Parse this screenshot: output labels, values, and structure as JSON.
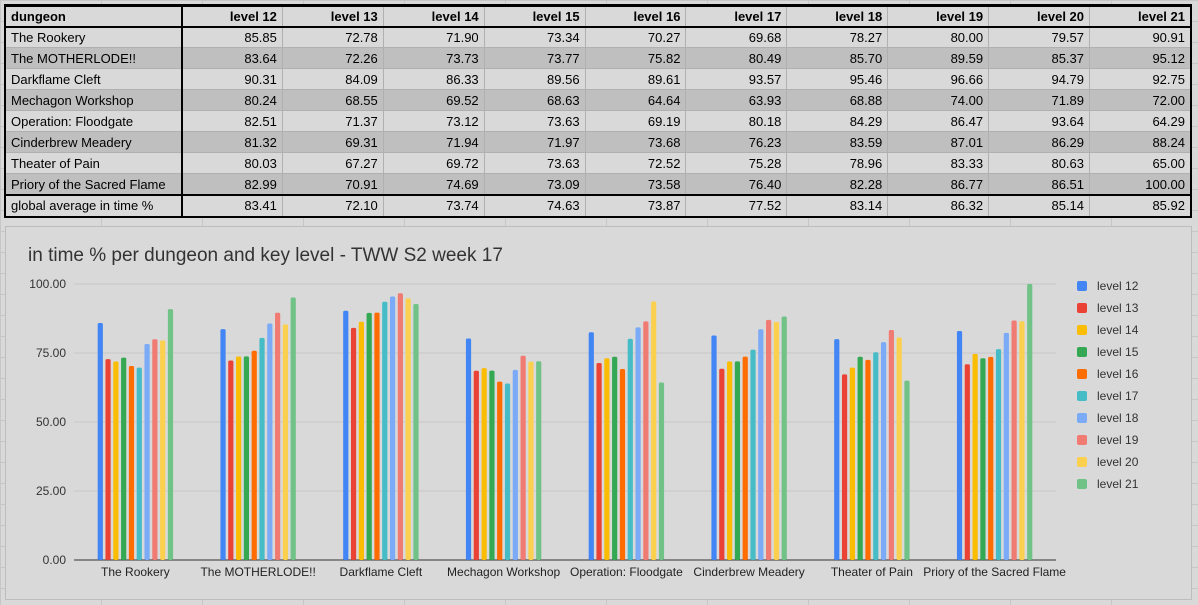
{
  "table": {
    "header": [
      "dungeon",
      "level 12",
      "level 13",
      "level 14",
      "level 15",
      "level 16",
      "level 17",
      "level 18",
      "level 19",
      "level 20",
      "level 21"
    ],
    "rows": [
      [
        "The Rookery",
        "85.85",
        "72.78",
        "71.90",
        "73.34",
        "70.27",
        "69.68",
        "78.27",
        "80.00",
        "79.57",
        "90.91"
      ],
      [
        "The MOTHERLODE!!",
        "83.64",
        "72.26",
        "73.73",
        "73.77",
        "75.82",
        "80.49",
        "85.70",
        "89.59",
        "85.37",
        "95.12"
      ],
      [
        "Darkflame Cleft",
        "90.31",
        "84.09",
        "86.33",
        "89.56",
        "89.61",
        "93.57",
        "95.46",
        "96.66",
        "94.79",
        "92.75"
      ],
      [
        "Mechagon Workshop",
        "80.24",
        "68.55",
        "69.52",
        "68.63",
        "64.64",
        "63.93",
        "68.88",
        "74.00",
        "71.89",
        "72.00"
      ],
      [
        "Operation: Floodgate",
        "82.51",
        "71.37",
        "73.12",
        "73.63",
        "69.19",
        "80.18",
        "84.29",
        "86.47",
        "93.64",
        "64.29"
      ],
      [
        "Cinderbrew Meadery",
        "81.32",
        "69.31",
        "71.94",
        "71.97",
        "73.68",
        "76.23",
        "83.59",
        "87.01",
        "86.29",
        "88.24"
      ],
      [
        "Theater of Pain",
        "80.03",
        "67.27",
        "69.72",
        "73.63",
        "72.52",
        "75.28",
        "78.96",
        "83.33",
        "80.63",
        "65.00"
      ],
      [
        "Priory of the Sacred Flame",
        "82.99",
        "70.91",
        "74.69",
        "73.09",
        "73.58",
        "76.40",
        "82.28",
        "86.77",
        "86.51",
        "100.00"
      ]
    ],
    "average": [
      "global average in time %",
      "83.41",
      "72.10",
      "73.74",
      "74.63",
      "73.87",
      "77.52",
      "83.14",
      "86.32",
      "85.14",
      "85.92"
    ]
  },
  "chart_data": {
    "type": "bar",
    "title": "in time % per dungeon and key level - TWW S2 week 17",
    "xlabel": "",
    "ylabel": "",
    "ylim": [
      0,
      100
    ],
    "yticks": [
      "0.00",
      "25.00",
      "50.00",
      "75.00",
      "100.00"
    ],
    "grid": true,
    "legend_position": "right",
    "categories": [
      "The Rookery",
      "The MOTHERLODE!!",
      "Darkflame Cleft",
      "Mechagon Workshop",
      "Operation: Floodgate",
      "Cinderbrew Meadery",
      "Theater of Pain",
      "Priory of the Sacred Flame"
    ],
    "series": [
      {
        "name": "level 12",
        "color": "#4285f4",
        "values": [
          85.85,
          83.64,
          90.31,
          80.24,
          82.51,
          81.32,
          80.03,
          82.99
        ]
      },
      {
        "name": "level 13",
        "color": "#ea4335",
        "values": [
          72.78,
          72.26,
          84.09,
          68.55,
          71.37,
          69.31,
          67.27,
          70.91
        ]
      },
      {
        "name": "level 14",
        "color": "#fbbc04",
        "values": [
          71.9,
          73.73,
          86.33,
          69.52,
          73.12,
          71.94,
          69.72,
          74.69
        ]
      },
      {
        "name": "level 15",
        "color": "#34a853",
        "values": [
          73.34,
          73.77,
          89.56,
          68.63,
          73.63,
          71.97,
          73.63,
          73.09
        ]
      },
      {
        "name": "level 16",
        "color": "#ff6d01",
        "values": [
          70.27,
          75.82,
          89.61,
          64.64,
          69.19,
          73.68,
          72.52,
          73.58
        ]
      },
      {
        "name": "level 17",
        "color": "#46bdc6",
        "values": [
          69.68,
          80.49,
          93.57,
          63.93,
          80.18,
          76.23,
          75.28,
          76.4
        ]
      },
      {
        "name": "level 18",
        "color": "#7baaf7",
        "values": [
          78.27,
          85.7,
          95.46,
          68.88,
          84.29,
          83.59,
          78.96,
          82.28
        ]
      },
      {
        "name": "level 19",
        "color": "#f07b72",
        "values": [
          80.0,
          89.59,
          96.66,
          74.0,
          86.47,
          87.01,
          83.33,
          86.77
        ]
      },
      {
        "name": "level 20",
        "color": "#fcd04f",
        "values": [
          79.57,
          85.37,
          94.79,
          71.89,
          93.64,
          86.29,
          80.63,
          86.51
        ]
      },
      {
        "name": "level 21",
        "color": "#71c287",
        "values": [
          90.91,
          95.12,
          92.75,
          72.0,
          64.29,
          88.24,
          65.0,
          100.0
        ]
      }
    ]
  }
}
